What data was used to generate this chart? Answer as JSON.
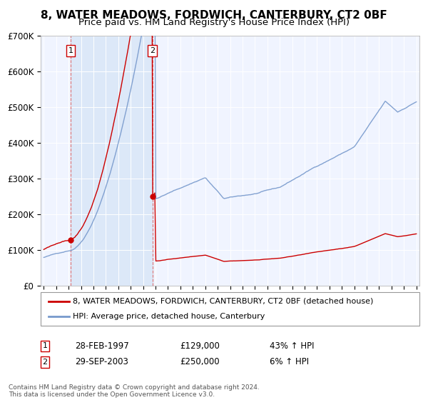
{
  "title": "8, WATER MEADOWS, FORDWICH, CANTERBURY, CT2 0BF",
  "subtitle": "Price paid vs. HM Land Registry's House Price Index (HPI)",
  "xlim": [
    1994.75,
    2025.25
  ],
  "ylim": [
    0,
    700000
  ],
  "yticks": [
    0,
    100000,
    200000,
    300000,
    400000,
    500000,
    600000,
    700000
  ],
  "ytick_labels": [
    "£0",
    "£100K",
    "£200K",
    "£300K",
    "£400K",
    "£500K",
    "£600K",
    "£700K"
  ],
  "sale1_date": 1997.16,
  "sale1_price": 129000,
  "sale2_date": 2003.75,
  "sale2_price": 250000,
  "sale1_label": "1",
  "sale2_label": "2",
  "sale1_text": "28-FEB-1997",
  "sale1_amount": "£129,000",
  "sale1_hpi": "43% ↑ HPI",
  "sale2_text": "29-SEP-2003",
  "sale2_amount": "£250,000",
  "sale2_hpi": "6% ↑ HPI",
  "legend_line1": "8, WATER MEADOWS, FORDWICH, CANTERBURY, CT2 0BF (detached house)",
  "legend_line2": "HPI: Average price, detached house, Canterbury",
  "footer": "Contains HM Land Registry data © Crown copyright and database right 2024.\nThis data is licensed under the Open Government Licence v3.0.",
  "line_color_red": "#cc0000",
  "line_color_blue": "#7799cc",
  "bg_color": "#f0f4ff",
  "span_color": "#dce8f8",
  "grid_color": "#ccccdd",
  "title_fontsize": 11,
  "subtitle_fontsize": 9.5
}
